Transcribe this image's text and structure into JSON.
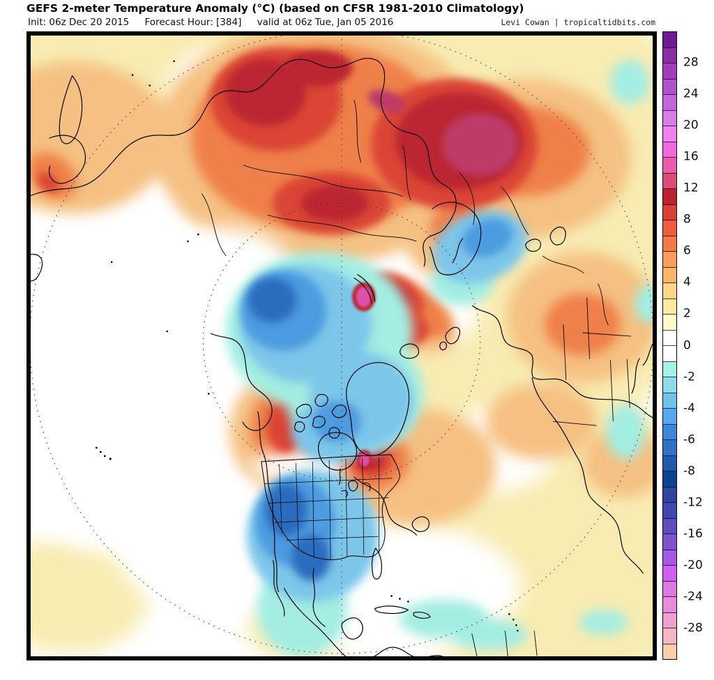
{
  "header": {
    "title": "GEFS 2-meter Temperature Anomaly (°C) (based on CFSR 1981-2010 Climatology)",
    "init_label": "Init: 06z Dec 20 2015",
    "forecast_hour_label": "Forecast Hour: [384]",
    "valid_label": "valid at 06z Tue, Jan 05 2016",
    "credit": "Levi Cowan | tropicaltidbits.com"
  },
  "colorbar": {
    "unit": "°C",
    "orientation": "vertical",
    "cells_top_to_bottom": [
      "#6E1B92",
      "#8C2BA6",
      "#A23CBC",
      "#B251CC",
      "#C466DA",
      "#D77EE9",
      "#EE82F2",
      "#F169DC",
      "#EC5BAC",
      "#DD4B77",
      "#BF2030",
      "#D94233",
      "#EE5C3D",
      "#F37B41",
      "#F99D58",
      "#FBB769",
      "#FDD687",
      "#FDE9A0",
      "#FEFAC8",
      "#FFFFFF",
      "#FFFFFF",
      "#A5F2E4",
      "#8BDCEC",
      "#6FC4EA",
      "#55AAEE",
      "#3B87DC",
      "#2E72C8",
      "#1C5CAE",
      "#0C4390",
      "#2E449E",
      "#4048B0",
      "#5D4EC0",
      "#7F52D0",
      "#A557E8",
      "#D160F0",
      "#DC78E4",
      "#E78CDC",
      "#EFA0CE",
      "#F5B6C4",
      "#FBCDA8"
    ],
    "tick_labels": [
      {
        "text": "28",
        "boundary": 2
      },
      {
        "text": "24",
        "boundary": 4
      },
      {
        "text": "20",
        "boundary": 6
      },
      {
        "text": "16",
        "boundary": 8
      },
      {
        "text": "12",
        "boundary": 10
      },
      {
        "text": "8",
        "boundary": 12
      },
      {
        "text": "6",
        "boundary": 14
      },
      {
        "text": "4",
        "boundary": 16
      },
      {
        "text": "2",
        "boundary": 18
      },
      {
        "text": "0",
        "boundary": 20
      },
      {
        "text": "-2",
        "boundary": 22
      },
      {
        "text": "-4",
        "boundary": 24
      },
      {
        "text": "-6",
        "boundary": 26
      },
      {
        "text": "-8",
        "boundary": 28
      },
      {
        "text": "-12",
        "boundary": 30
      },
      {
        "text": "-16",
        "boundary": 32
      },
      {
        "text": "-20",
        "boundary": 34
      },
      {
        "text": "-24",
        "boundary": 36
      },
      {
        "text": "-28",
        "boundary": 38
      }
    ]
  },
  "map": {
    "kind": "2m-temperature-anomaly",
    "projection": "polar-stereographic-northern-hemisphere",
    "palette": {
      "white": "#FFFFFF",
      "pale_yellow": "#F8ECB2",
      "light_orange": "#F5C182",
      "orange": "#EF8049",
      "red": "#DA4534",
      "dark_red": "#BB2531",
      "crimson": "#BE3A68",
      "magenta": "#DF51A8",
      "pale_cyan": "#A3EDE2",
      "light_blue": "#7CC6EA",
      "medium_blue": "#4E9BE0",
      "deep_blue": "#2A6CBD",
      "coastline": "#000000",
      "graticule": "#444444"
    }
  }
}
